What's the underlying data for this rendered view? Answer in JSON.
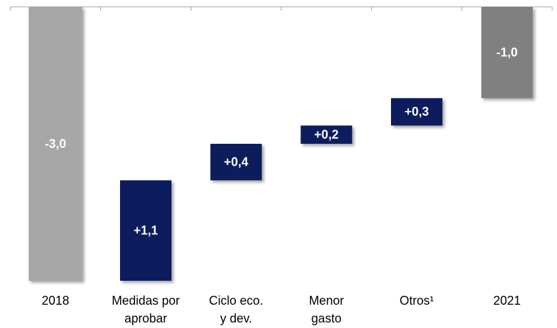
{
  "chart_data": {
    "type": "waterfall",
    "categories": [
      [
        "2018"
      ],
      [
        "Medidas por",
        "aprobar"
      ],
      [
        "Ciclo eco.",
        "y dev."
      ],
      [
        "Menor",
        "gasto"
      ],
      [
        "Otros¹"
      ],
      [
        "2021"
      ]
    ],
    "values": [
      -3.0,
      1.1,
      0.4,
      0.2,
      0.3,
      -1.0
    ],
    "value_labels": [
      "-3,0",
      "+1,1",
      "+0,4",
      "+0,2",
      "+0,3",
      "-1,0"
    ],
    "colors": [
      "#a6a6a6",
      "#0c1f5b",
      "#0c1f5b",
      "#0c1f5b",
      "#0c1f5b",
      "#808080"
    ],
    "ylim": [
      -3,
      0
    ]
  }
}
